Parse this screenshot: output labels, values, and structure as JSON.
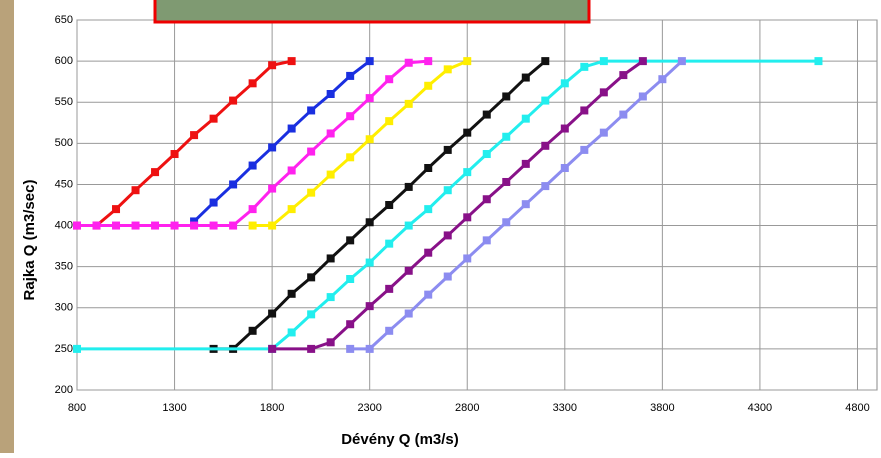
{
  "chart_data": {
    "type": "line",
    "xlabel": "Dévény Q (m3/s)",
    "ylabel": "Rajka Q  (m3/sec)",
    "xlim": [
      800,
      4900
    ],
    "ylim": [
      200,
      650
    ],
    "xticks": [
      800,
      1300,
      1800,
      2300,
      2800,
      3300,
      3800,
      4300,
      4800
    ],
    "yticks": [
      200,
      250,
      300,
      350,
      400,
      450,
      500,
      550,
      600,
      650
    ],
    "grid": true,
    "series": [
      {
        "color": "#ee1111",
        "x": [
          800,
          900,
          1000,
          1100,
          1200,
          1300,
          1400,
          1500,
          1600,
          1700,
          1800,
          1900
        ],
        "values": [
          400,
          400,
          420,
          443,
          465,
          487,
          510,
          530,
          552,
          573,
          595,
          600
        ]
      },
      {
        "color": "#1a2fe0",
        "x": [
          1400,
          1500,
          1600,
          1700,
          1800,
          1900,
          2000,
          2100,
          2200,
          2300
        ],
        "values": [
          405,
          428,
          450,
          473,
          495,
          518,
          540,
          560,
          582,
          600
        ]
      },
      {
        "color": "#ff22ee",
        "x": [
          800,
          900,
          1000,
          1100,
          1200,
          1300,
          1400,
          1500,
          1600,
          1700,
          1800,
          1900,
          2000,
          2100,
          2200,
          2300,
          2400,
          2500,
          2600
        ],
        "values": [
          400,
          400,
          400,
          400,
          400,
          400,
          400,
          400,
          400,
          420,
          445,
          467,
          490,
          512,
          533,
          555,
          578,
          598,
          600
        ]
      },
      {
        "color": "#ffee00",
        "x": [
          1700,
          1800,
          1900,
          2000,
          2100,
          2200,
          2300,
          2400,
          2500,
          2600,
          2700,
          2800
        ],
        "values": [
          400,
          400,
          420,
          440,
          462,
          483,
          505,
          527,
          548,
          570,
          590,
          600
        ]
      },
      {
        "color": "#111111",
        "x": [
          1500,
          1600,
          1700,
          1800,
          1900,
          2000,
          2100,
          2200,
          2300,
          2400,
          2500,
          2600,
          2700,
          2800,
          2900,
          3000,
          3100,
          3200
        ],
        "values": [
          250,
          250,
          272,
          293,
          317,
          337,
          360,
          382,
          404,
          425,
          447,
          470,
          492,
          513,
          535,
          557,
          580,
          600
        ]
      },
      {
        "color": "#22eeee",
        "x": [
          800,
          1800,
          1900,
          2000,
          2100,
          2200,
          2300,
          2400,
          2500,
          2600,
          2700,
          2800,
          2900,
          3000,
          3100,
          3200,
          3300,
          3400,
          3500,
          4600
        ],
        "values": [
          250,
          250,
          270,
          292,
          313,
          335,
          355,
          378,
          400,
          420,
          443,
          465,
          487,
          508,
          530,
          552,
          573,
          593,
          600,
          600
        ]
      },
      {
        "color": "#881188",
        "x": [
          1800,
          2000,
          2100,
          2200,
          2300,
          2400,
          2500,
          2600,
          2700,
          2800,
          2900,
          3000,
          3100,
          3200,
          3300,
          3400,
          3500,
          3600,
          3700
        ],
        "values": [
          250,
          250,
          258,
          280,
          302,
          323,
          345,
          367,
          388,
          410,
          432,
          453,
          475,
          497,
          518,
          540,
          562,
          583,
          600
        ]
      },
      {
        "color": "#8c8cf0",
        "x": [
          2200,
          2300,
          2400,
          2500,
          2600,
          2700,
          2800,
          2900,
          3000,
          3100,
          3200,
          3300,
          3400,
          3500,
          3600,
          3700,
          3800,
          3900
        ],
        "values": [
          250,
          250,
          272,
          293,
          316,
          338,
          360,
          382,
          404,
          426,
          448,
          470,
          492,
          513,
          535,
          557,
          578,
          600
        ]
      }
    ]
  }
}
